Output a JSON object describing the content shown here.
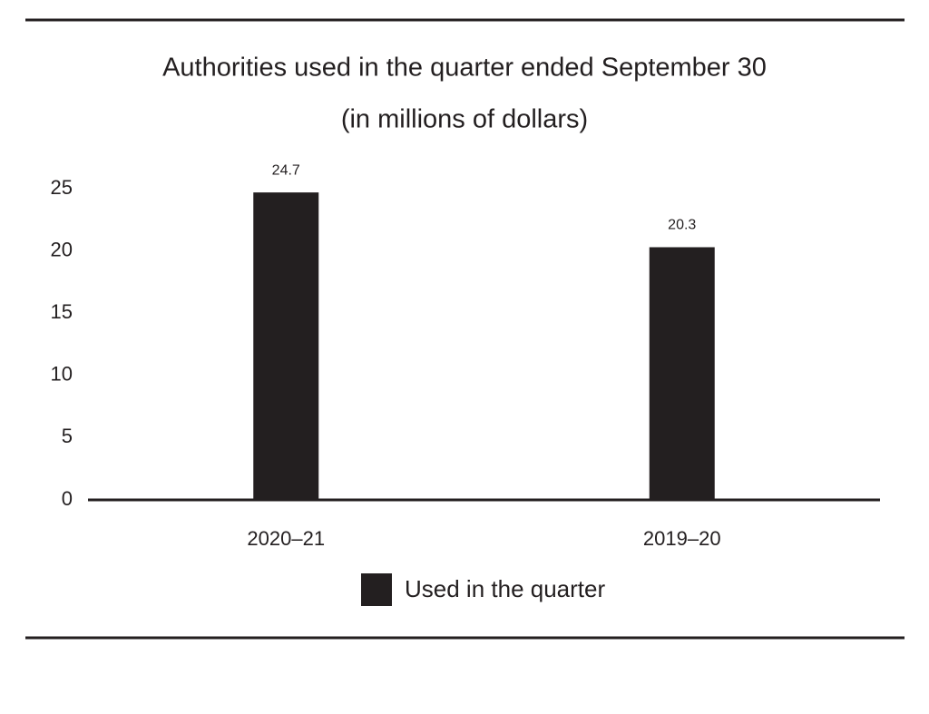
{
  "chart_data": {
    "type": "bar",
    "title": "Authorities used in the quarter ended September 30",
    "subtitle": "(in millions of dollars)",
    "categories": [
      "2020–21",
      "2019–20"
    ],
    "series": [
      {
        "name": "Used in the quarter",
        "color": "#231f20",
        "values": [
          24.7,
          20.3
        ]
      }
    ],
    "ylim": [
      0,
      25
    ],
    "yticks": [
      0,
      5,
      10,
      15,
      20,
      25
    ],
    "grid": false,
    "legend": "bottom"
  }
}
